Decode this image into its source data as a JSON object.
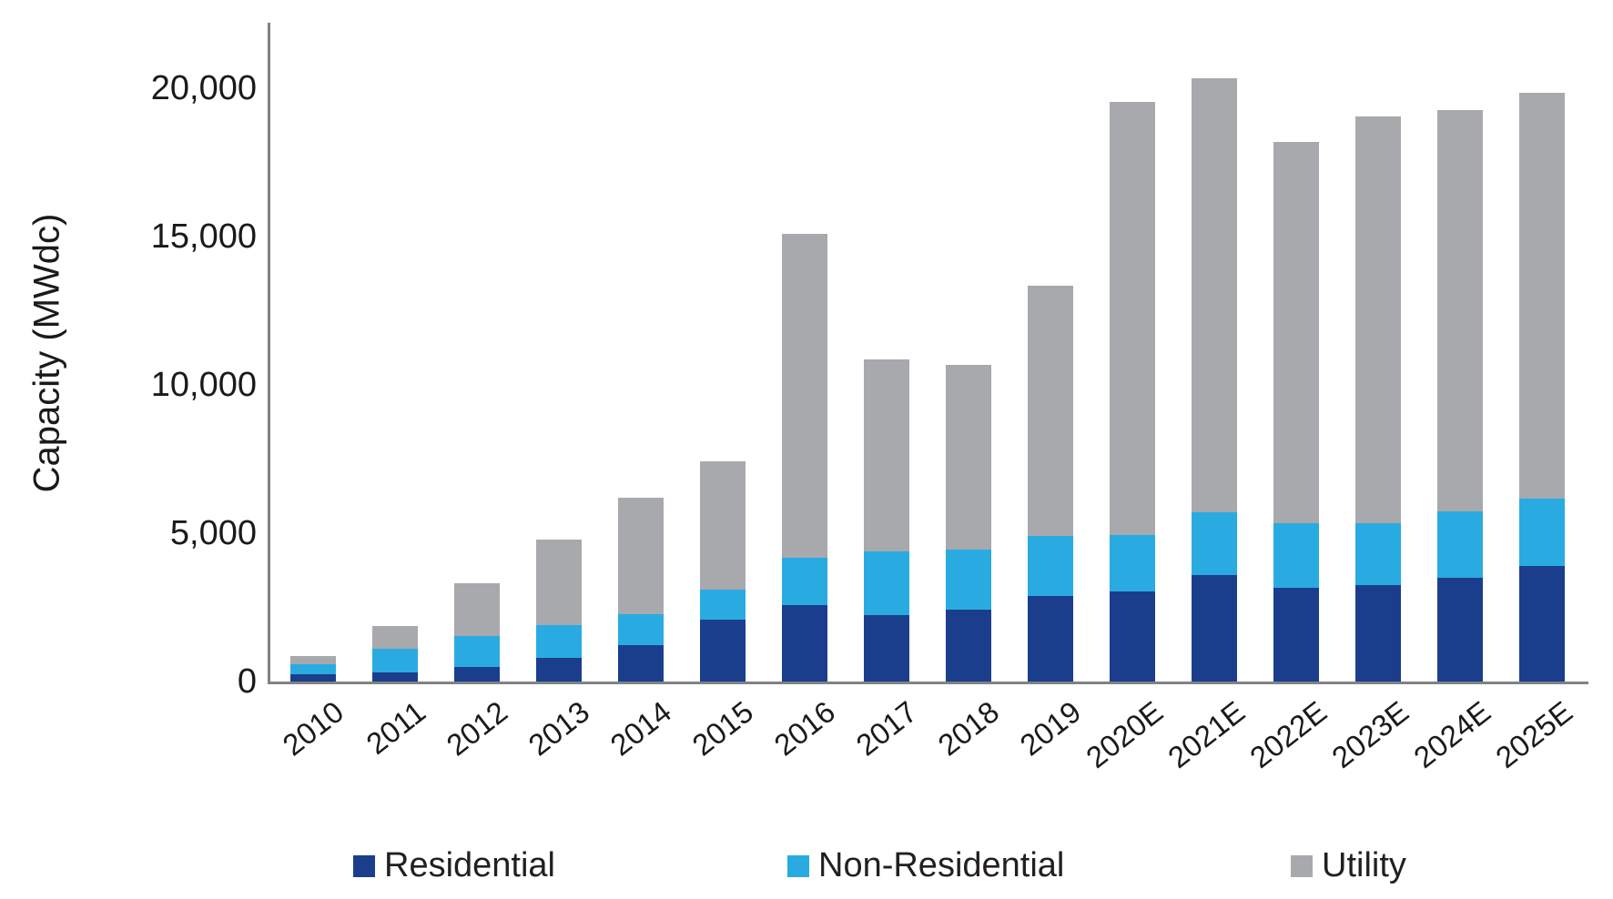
{
  "chart_data": {
    "type": "bar",
    "stacked": true,
    "title": "",
    "xlabel": "",
    "ylabel": "Capacity (MWdc)",
    "ylim": [
      0,
      22000
    ],
    "yticks": [
      0,
      5000,
      10000,
      15000,
      20000
    ],
    "ytick_labels": [
      "0",
      "5,000",
      "10,000",
      "15,000",
      "20,000"
    ],
    "grid": false,
    "legend_position": "bottom",
    "categories": [
      "2010",
      "2011",
      "2012",
      "2013",
      "2014",
      "2015",
      "2016",
      "2017",
      "2018",
      "2019",
      "2020E",
      "2021E",
      "2022E",
      "2023E",
      "2024E",
      "2025E"
    ],
    "series": [
      {
        "name": "Residential",
        "color": "#1b3e8c",
        "values": [
          246,
          297,
          490,
          792,
          1231,
          2099,
          2583,
          2244,
          2421,
          2889,
          3050,
          3600,
          3150,
          3250,
          3500,
          3900
        ]
      },
      {
        "name": "Non-Residential",
        "color": "#29abe2",
        "values": [
          341,
          804,
          1043,
          1112,
          1036,
          1011,
          1586,
          2147,
          2040,
          2017,
          1900,
          2100,
          2200,
          2100,
          2230,
          2270
        ]
      },
      {
        "name": "Utility",
        "color": "#a7a9ac",
        "values": [
          267,
          758,
          1781,
          2872,
          3924,
          4319,
          10910,
          6454,
          6203,
          8433,
          14600,
          14650,
          12850,
          13700,
          13530,
          13680
        ]
      }
    ],
    "axis_color": "#808285",
    "text_color": "#1a1a1a"
  }
}
